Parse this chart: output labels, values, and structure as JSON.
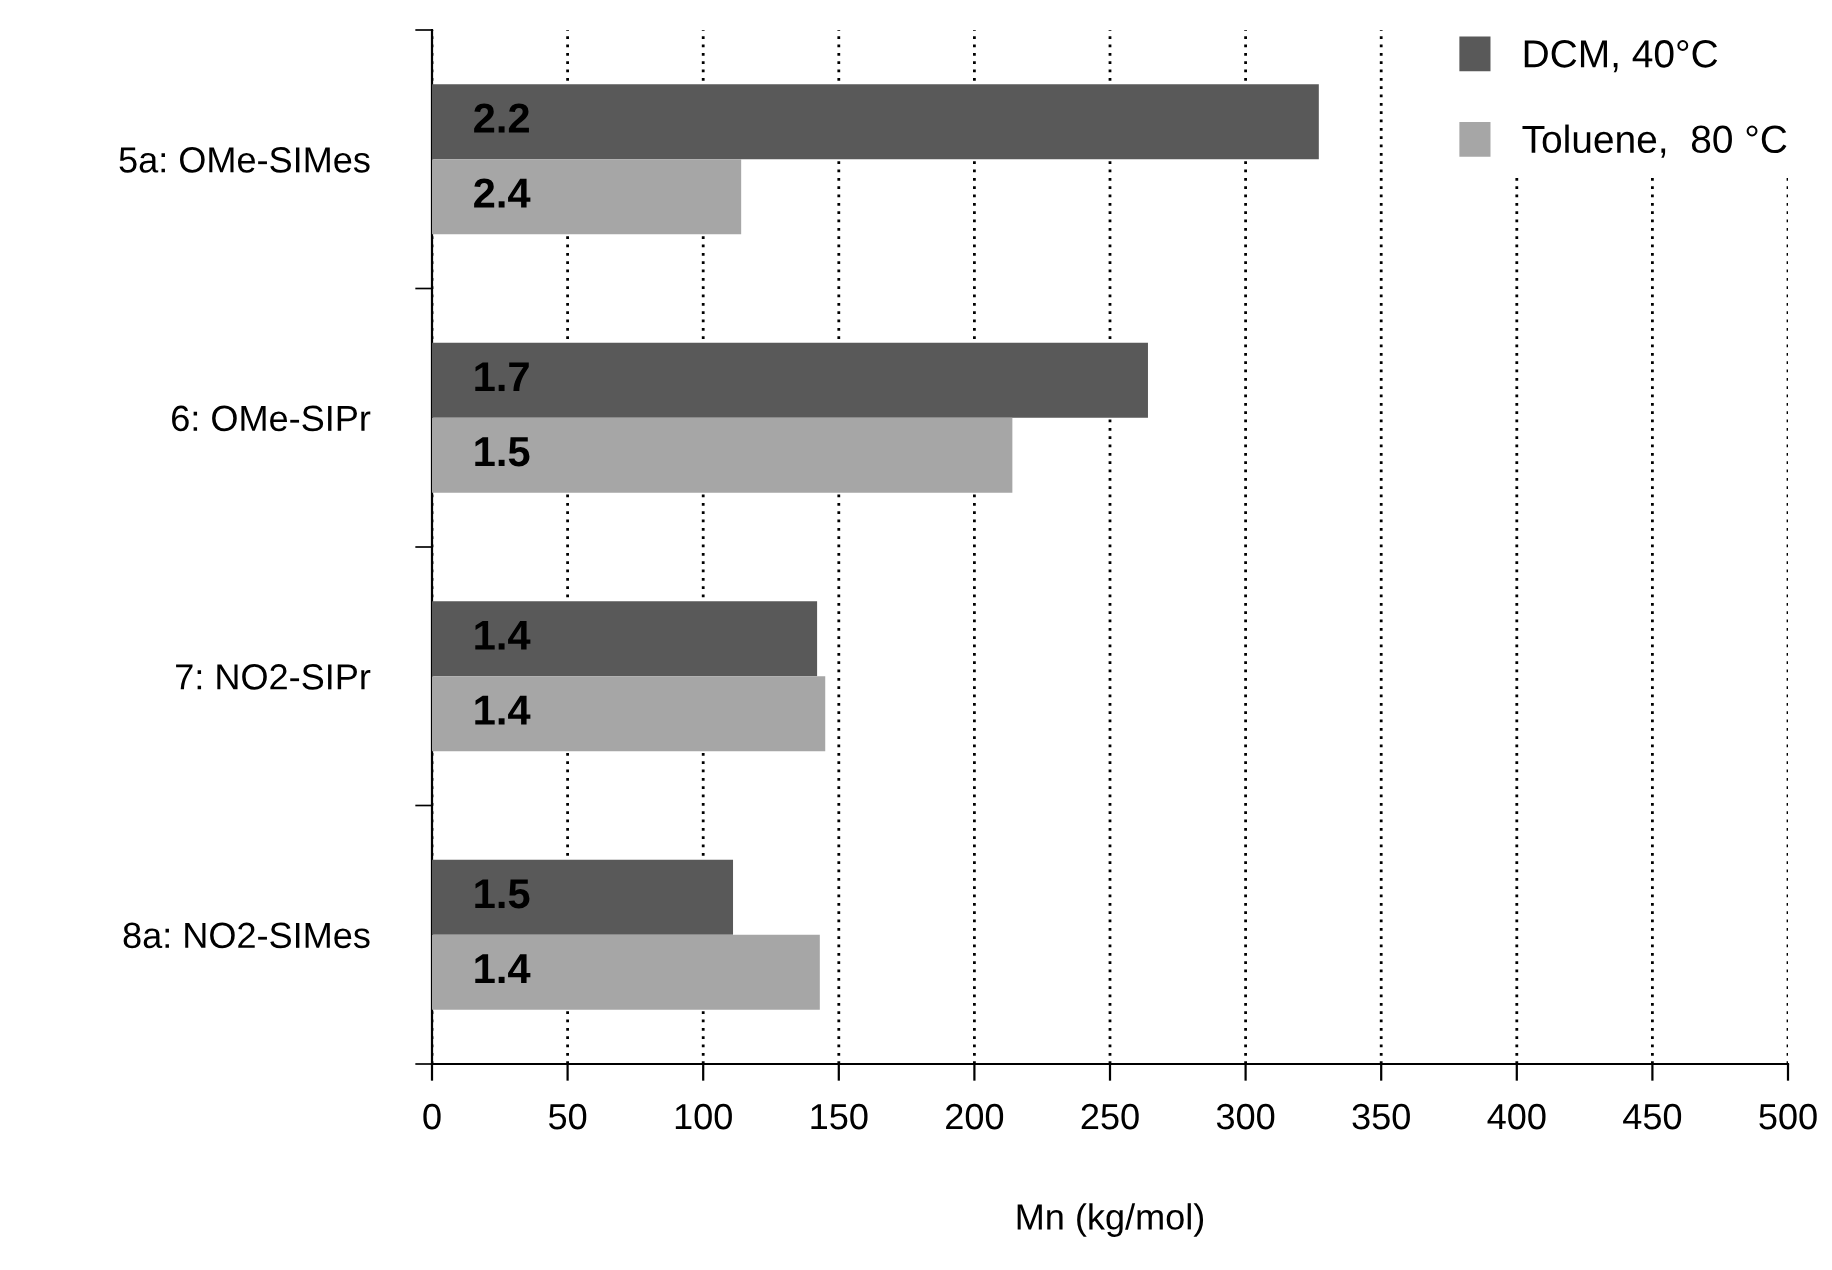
{
  "chart_data": {
    "type": "bar",
    "orientation": "horizontal",
    "xlabel": "Mn (kg/mol)",
    "categories": [
      "5a: OMe-SIMes",
      "6: OMe-SIPr",
      "7: NO2-SIPr",
      "8a: NO2-SIMes"
    ],
    "series": [
      {
        "name": "DCM, 40°C",
        "color": "#595959",
        "values": [
          327,
          264,
          142,
          111
        ]
      },
      {
        "name": "Toluene,  80 °C",
        "color": "#a6a6a6",
        "values": [
          114,
          214,
          145,
          143
        ]
      }
    ],
    "annotations": [
      "2.2",
      "2.4",
      "1.7",
      "1.5",
      "1.4",
      "1.4",
      "1.5",
      "1.4"
    ],
    "xlim": [
      0,
      500
    ],
    "xticks": [
      0,
      50,
      100,
      150,
      200,
      250,
      300,
      350,
      400,
      450,
      500
    ],
    "grid": "x",
    "legend": "top right"
  }
}
